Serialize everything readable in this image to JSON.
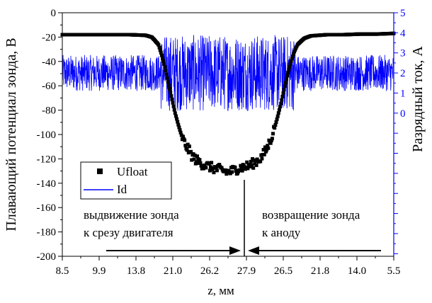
{
  "chart_data": {
    "type": "scatter",
    "ylabel_left": "Плавающий потенциал зонда, В",
    "ylabel_right": "Разрядный ток, А",
    "xlabel": "z, мм",
    "x_tick_labels": [
      "8.5",
      "9.9",
      "13.8",
      "21.0",
      "26.2",
      "27.9",
      "26.5",
      "21.8",
      "14.0",
      "5.5"
    ],
    "ylim_left": [
      -200,
      0
    ],
    "y_ticks_left": [
      "0",
      "-20",
      "-40",
      "-60",
      "-80",
      "-100",
      "-120",
      "-140",
      "-160",
      "-180",
      "-200"
    ],
    "ylim_right": [
      -7.13,
      5
    ],
    "y_ticks_right": [
      "5",
      "4",
      "3",
      "2",
      "1",
      "0"
    ],
    "legend": {
      "placement": "lower-left",
      "entries": [
        {
          "label": "Ufloat",
          "marker": "square",
          "color": "#000000"
        },
        {
          "label": "Id",
          "marker": "line",
          "color": "#0000ff"
        }
      ]
    },
    "annotations": {
      "left_text_line1": "выдвижение зонда",
      "left_text_line2": "к срезу двигателя",
      "right_text_line1": "возвращение зонда",
      "right_text_line2": "к аноду"
    },
    "series": [
      {
        "name": "Ufloat",
        "axis": "left",
        "color": "#000000",
        "x_pos": [
          0,
          0.05,
          0.1,
          0.15,
          0.2,
          0.25,
          0.27,
          0.29,
          0.3,
          0.31,
          0.32,
          0.33,
          0.34,
          0.35,
          0.36,
          0.37,
          0.38,
          0.39,
          0.4,
          0.42,
          0.44,
          0.46,
          0.48,
          0.5,
          0.52,
          0.54,
          0.56,
          0.58,
          0.6,
          0.61,
          0.62,
          0.63,
          0.64,
          0.65,
          0.66,
          0.67,
          0.68,
          0.69,
          0.7,
          0.71,
          0.73,
          0.75,
          0.8,
          0.85,
          0.9,
          0.95,
          1.0
        ],
        "y": [
          -18,
          -18,
          -18,
          -18,
          -18,
          -18.5,
          -20,
          -26,
          -35,
          -45,
          -58,
          -70,
          -82,
          -92,
          -101,
          -108,
          -112,
          -117,
          -120,
          -124,
          -126,
          -128,
          -129,
          -131,
          -129,
          -127,
          -126,
          -123,
          -119,
          -115,
          -110,
          -103,
          -95,
          -85,
          -74,
          -62,
          -50,
          -40,
          -32,
          -26,
          -21,
          -19,
          -18,
          -18,
          -17.5,
          -17.5,
          -17
        ]
      },
      {
        "name": "Id",
        "axis": "right",
        "color": "#0000ff",
        "baseline": 2.0,
        "noise_outer": 0.9,
        "noise_inner": 1.9,
        "inner_range_pos": [
          0.295,
          0.705
        ]
      }
    ]
  }
}
